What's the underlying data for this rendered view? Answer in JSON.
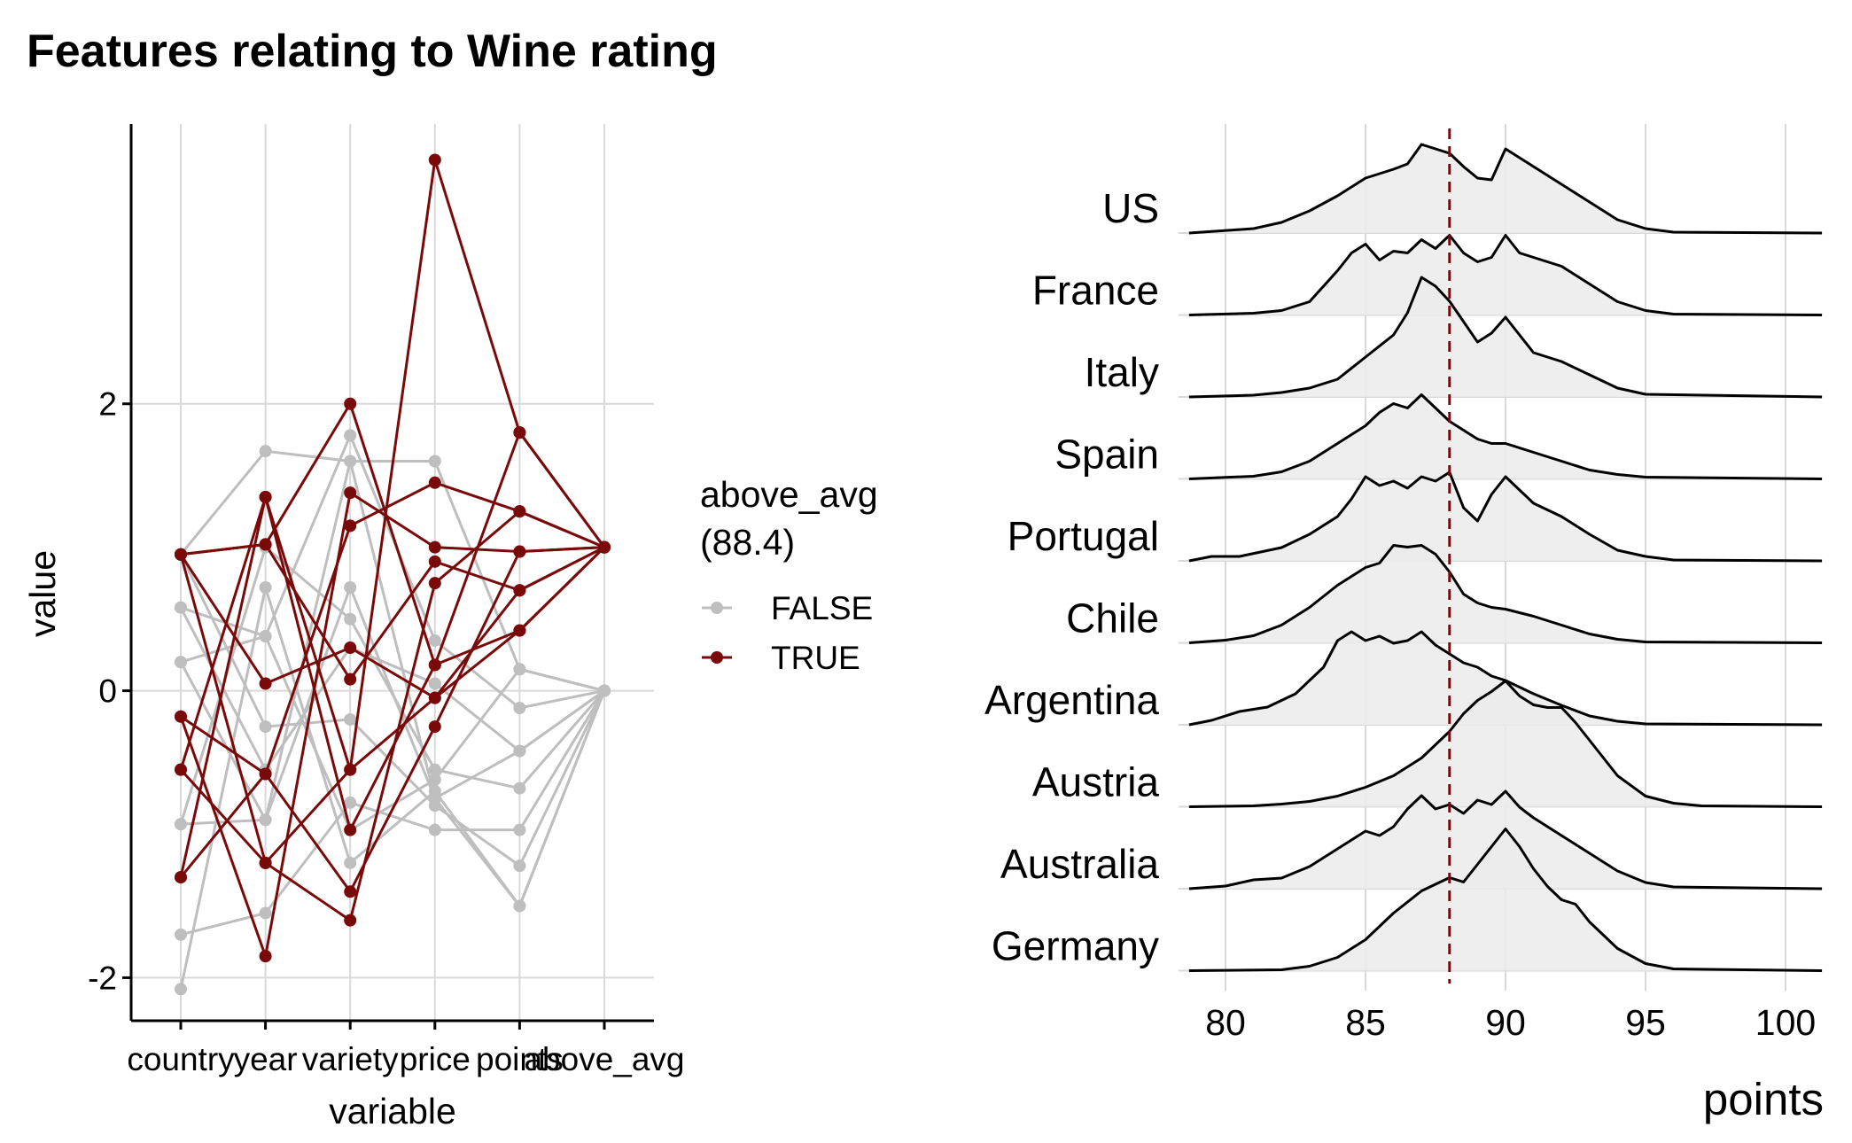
{
  "title": "Features relating to Wine rating",
  "colors": {
    "true": "#7a0a0a",
    "false": "#bebebe",
    "ridge_fill": "#ebebeb",
    "grid": "#d9d9d9",
    "vline": "#7a0a0a"
  },
  "chart_data": [
    {
      "type": "line",
      "subtype": "parallel-coordinates",
      "xlabel": "variable",
      "ylabel": "value",
      "categories": [
        "country",
        "year",
        "variety",
        "price",
        "points",
        "above_avg"
      ],
      "yticks": [
        -2,
        0,
        2
      ],
      "ylim": [
        -2.3,
        3.95
      ],
      "grid": true,
      "legend": {
        "title_line1": "above_avg",
        "title_line2": "(88.4)",
        "placement": "right",
        "entries": [
          "FALSE",
          "TRUE"
        ]
      },
      "series": [
        {
          "group": "TRUE",
          "values": [
            -0.55,
            1.35,
            -0.55,
            3.7,
            1.8,
            1.0
          ]
        },
        {
          "group": "TRUE",
          "values": [
            0.95,
            1.02,
            2.0,
            0.18,
            0.42,
            1.0
          ]
        },
        {
          "group": "TRUE",
          "values": [
            -1.3,
            -0.58,
            1.15,
            1.45,
            1.25,
            1.0
          ]
        },
        {
          "group": "TRUE",
          "values": [
            -0.18,
            -1.85,
            1.38,
            1.0,
            0.97,
            1.0
          ]
        },
        {
          "group": "TRUE",
          "values": [
            0.95,
            0.05,
            0.3,
            -0.05,
            0.42,
            1.0
          ]
        },
        {
          "group": "TRUE",
          "values": [
            -0.55,
            -1.2,
            -1.6,
            0.75,
            1.25,
            1.0
          ]
        },
        {
          "group": "TRUE",
          "values": [
            0.95,
            1.02,
            0.08,
            0.9,
            0.7,
            1.0
          ]
        },
        {
          "group": "TRUE",
          "values": [
            -0.18,
            -0.58,
            -1.4,
            -0.25,
            0.97,
            1.0
          ]
        },
        {
          "group": "TRUE",
          "values": [
            -1.3,
            1.35,
            -0.97,
            0.18,
            1.8,
            1.0
          ]
        },
        {
          "group": "TRUE",
          "values": [
            0.95,
            -1.2,
            -0.55,
            -0.05,
            0.7,
            1.0
          ]
        },
        {
          "group": "FALSE",
          "values": [
            0.95,
            1.67,
            1.6,
            1.6,
            0.15,
            0.0
          ]
        },
        {
          "group": "FALSE",
          "values": [
            0.58,
            0.38,
            1.78,
            0.35,
            -0.12,
            0.0
          ]
        },
        {
          "group": "FALSE",
          "values": [
            0.2,
            -0.9,
            0.72,
            -0.75,
            -0.42,
            0.0
          ]
        },
        {
          "group": "FALSE",
          "values": [
            -0.93,
            1.0,
            0.5,
            -0.55,
            -0.68,
            0.0
          ]
        },
        {
          "group": "FALSE",
          "values": [
            -1.7,
            -1.55,
            -0.78,
            -0.97,
            -0.97,
            0.0
          ]
        },
        {
          "group": "FALSE",
          "values": [
            -2.08,
            0.72,
            -1.2,
            -0.7,
            -1.5,
            0.0
          ]
        },
        {
          "group": "FALSE",
          "values": [
            0.95,
            -0.25,
            -0.2,
            -0.8,
            -1.22,
            0.0
          ]
        },
        {
          "group": "FALSE",
          "values": [
            0.58,
            -0.55,
            0.3,
            0.05,
            -0.42,
            0.0
          ]
        },
        {
          "group": "FALSE",
          "values": [
            0.2,
            0.38,
            -0.97,
            -0.62,
            0.15,
            0.0
          ]
        },
        {
          "group": "FALSE",
          "values": [
            -0.93,
            -0.9,
            1.6,
            -0.75,
            -1.5,
            0.0
          ]
        }
      ]
    },
    {
      "type": "ridgeline",
      "xlabel": "points",
      "xticks": [
        80,
        85,
        90,
        95,
        100
      ],
      "xlim": [
        78.5,
        101.3
      ],
      "reference_line": 88,
      "grid": true,
      "categories": [
        "US",
        "France",
        "Italy",
        "Spain",
        "Portugal",
        "Chile",
        "Argentina",
        "Austria",
        "Australia",
        "Germany"
      ],
      "densities": [
        [
          [
            78.7,
            0.0
          ],
          [
            81,
            0.05
          ],
          [
            82,
            0.12
          ],
          [
            83,
            0.25
          ],
          [
            84,
            0.42
          ],
          [
            85,
            0.62
          ],
          [
            86,
            0.72
          ],
          [
            86.5,
            0.78
          ],
          [
            87,
            1.0
          ],
          [
            87.5,
            0.95
          ],
          [
            88,
            0.9
          ],
          [
            88.5,
            0.75
          ],
          [
            89,
            0.62
          ],
          [
            89.5,
            0.6
          ],
          [
            90,
            0.95
          ],
          [
            90.5,
            0.85
          ],
          [
            91,
            0.75
          ],
          [
            92,
            0.55
          ],
          [
            93,
            0.35
          ],
          [
            94,
            0.15
          ],
          [
            95,
            0.05
          ],
          [
            96,
            0.01
          ],
          [
            101.3,
            0.0
          ]
        ],
        [
          [
            78.7,
            0.0
          ],
          [
            81,
            0.02
          ],
          [
            82,
            0.05
          ],
          [
            83,
            0.15
          ],
          [
            84,
            0.5
          ],
          [
            84.5,
            0.7
          ],
          [
            85,
            0.8
          ],
          [
            85.5,
            0.62
          ],
          [
            86,
            0.72
          ],
          [
            86.5,
            0.7
          ],
          [
            87,
            0.85
          ],
          [
            87.5,
            0.75
          ],
          [
            88,
            0.9
          ],
          [
            88.5,
            0.7
          ],
          [
            89,
            0.6
          ],
          [
            89.5,
            0.65
          ],
          [
            90,
            0.9
          ],
          [
            90.5,
            0.7
          ],
          [
            91,
            0.65
          ],
          [
            92,
            0.55
          ],
          [
            93,
            0.35
          ],
          [
            94,
            0.15
          ],
          [
            95,
            0.05
          ],
          [
            96,
            0.01
          ],
          [
            101.3,
            0.0
          ]
        ],
        [
          [
            78.7,
            0.0
          ],
          [
            81,
            0.02
          ],
          [
            82,
            0.05
          ],
          [
            83,
            0.1
          ],
          [
            84,
            0.2
          ],
          [
            85,
            0.45
          ],
          [
            86,
            0.7
          ],
          [
            86.5,
            0.95
          ],
          [
            87,
            1.35
          ],
          [
            87.5,
            1.25
          ],
          [
            88,
            1.08
          ],
          [
            88.5,
            0.85
          ],
          [
            89,
            0.62
          ],
          [
            89.5,
            0.72
          ],
          [
            90,
            0.9
          ],
          [
            90.5,
            0.7
          ],
          [
            91,
            0.5
          ],
          [
            92,
            0.4
          ],
          [
            93,
            0.25
          ],
          [
            94,
            0.1
          ],
          [
            95,
            0.03
          ],
          [
            101.3,
            0.0
          ]
        ],
        [
          [
            78.7,
            0.0
          ],
          [
            81,
            0.03
          ],
          [
            82,
            0.08
          ],
          [
            83,
            0.2
          ],
          [
            84,
            0.4
          ],
          [
            85,
            0.6
          ],
          [
            85.5,
            0.75
          ],
          [
            86,
            0.85
          ],
          [
            86.5,
            0.8
          ],
          [
            87,
            0.95
          ],
          [
            87.5,
            0.8
          ],
          [
            88,
            0.65
          ],
          [
            88.5,
            0.55
          ],
          [
            89,
            0.45
          ],
          [
            89.5,
            0.4
          ],
          [
            90,
            0.4
          ],
          [
            91,
            0.3
          ],
          [
            92,
            0.2
          ],
          [
            93,
            0.1
          ],
          [
            94,
            0.05
          ],
          [
            95,
            0.02
          ],
          [
            101.3,
            0.0
          ]
        ],
        [
          [
            78.7,
            0.0
          ],
          [
            79.5,
            0.05
          ],
          [
            80.5,
            0.05
          ],
          [
            82,
            0.15
          ],
          [
            83,
            0.3
          ],
          [
            84,
            0.5
          ],
          [
            84.5,
            0.7
          ],
          [
            85,
            0.95
          ],
          [
            85.5,
            0.85
          ],
          [
            86,
            0.9
          ],
          [
            86.5,
            0.82
          ],
          [
            87,
            0.95
          ],
          [
            87.5,
            0.9
          ],
          [
            88,
            1.0
          ],
          [
            88.5,
            0.6
          ],
          [
            89,
            0.45
          ],
          [
            89.5,
            0.75
          ],
          [
            90,
            0.95
          ],
          [
            90.5,
            0.8
          ],
          [
            91,
            0.65
          ],
          [
            92,
            0.5
          ],
          [
            93,
            0.3
          ],
          [
            94,
            0.12
          ],
          [
            95,
            0.05
          ],
          [
            96,
            0.01
          ],
          [
            101.3,
            0.0
          ]
        ],
        [
          [
            78.7,
            0.0
          ],
          [
            80,
            0.03
          ],
          [
            81,
            0.08
          ],
          [
            82,
            0.2
          ],
          [
            83,
            0.4
          ],
          [
            84,
            0.65
          ],
          [
            85,
            0.85
          ],
          [
            85.5,
            0.9
          ],
          [
            86,
            1.1
          ],
          [
            86.5,
            1.08
          ],
          [
            87,
            1.1
          ],
          [
            87.5,
            1.0
          ],
          [
            88,
            0.8
          ],
          [
            88.5,
            0.55
          ],
          [
            89,
            0.45
          ],
          [
            89.5,
            0.4
          ],
          [
            90,
            0.38
          ],
          [
            91,
            0.3
          ],
          [
            92,
            0.2
          ],
          [
            93,
            0.1
          ],
          [
            94,
            0.04
          ],
          [
            95,
            0.01
          ],
          [
            101.3,
            0.0
          ]
        ],
        [
          [
            78.7,
            0.0
          ],
          [
            79.5,
            0.05
          ],
          [
            80.5,
            0.15
          ],
          [
            81.5,
            0.2
          ],
          [
            82.5,
            0.35
          ],
          [
            83.5,
            0.65
          ],
          [
            84,
            0.95
          ],
          [
            84.5,
            1.05
          ],
          [
            85,
            0.95
          ],
          [
            85.5,
            1.0
          ],
          [
            86,
            0.92
          ],
          [
            86.5,
            0.95
          ],
          [
            87,
            1.05
          ],
          [
            87.5,
            0.9
          ],
          [
            88,
            0.8
          ],
          [
            88.5,
            0.7
          ],
          [
            89,
            0.65
          ],
          [
            89.5,
            0.55
          ],
          [
            90,
            0.5
          ],
          [
            91,
            0.35
          ],
          [
            92,
            0.22
          ],
          [
            93,
            0.1
          ],
          [
            94,
            0.04
          ],
          [
            95,
            0.01
          ],
          [
            101.3,
            0.0
          ]
        ],
        [
          [
            78.7,
            0.0
          ],
          [
            81,
            0.01
          ],
          [
            82,
            0.03
          ],
          [
            83,
            0.06
          ],
          [
            84,
            0.12
          ],
          [
            85,
            0.22
          ],
          [
            86,
            0.35
          ],
          [
            87,
            0.55
          ],
          [
            88,
            0.85
          ],
          [
            88.5,
            1.05
          ],
          [
            89,
            1.2
          ],
          [
            89.5,
            1.3
          ],
          [
            90,
            1.42
          ],
          [
            90.5,
            1.25
          ],
          [
            91,
            1.15
          ],
          [
            91.5,
            1.12
          ],
          [
            92,
            1.12
          ],
          [
            92.5,
            0.95
          ],
          [
            93,
            0.75
          ],
          [
            94,
            0.35
          ],
          [
            95,
            0.12
          ],
          [
            96,
            0.04
          ],
          [
            97,
            0.01
          ],
          [
            101.3,
            0.0
          ]
        ],
        [
          [
            78.7,
            0.0
          ],
          [
            80,
            0.03
          ],
          [
            81,
            0.1
          ],
          [
            82,
            0.12
          ],
          [
            83,
            0.25
          ],
          [
            84,
            0.45
          ],
          [
            85,
            0.65
          ],
          [
            85.5,
            0.6
          ],
          [
            86,
            0.7
          ],
          [
            86.5,
            0.9
          ],
          [
            87,
            1.05
          ],
          [
            87.5,
            0.9
          ],
          [
            88,
            0.95
          ],
          [
            88.5,
            0.85
          ],
          [
            89,
            1.0
          ],
          [
            89.5,
            0.95
          ],
          [
            90,
            1.1
          ],
          [
            90.5,
            0.92
          ],
          [
            91,
            0.8
          ],
          [
            92,
            0.6
          ],
          [
            93,
            0.4
          ],
          [
            94,
            0.2
          ],
          [
            95,
            0.07
          ],
          [
            96,
            0.02
          ],
          [
            101.3,
            0.0
          ]
        ],
        [
          [
            78.7,
            0.0
          ],
          [
            82,
            0.01
          ],
          [
            83,
            0.05
          ],
          [
            84,
            0.15
          ],
          [
            85,
            0.35
          ],
          [
            86,
            0.65
          ],
          [
            87,
            0.9
          ],
          [
            88,
            1.05
          ],
          [
            88.5,
            1.0
          ],
          [
            89,
            1.2
          ],
          [
            89.5,
            1.4
          ],
          [
            90,
            1.6
          ],
          [
            90.5,
            1.4
          ],
          [
            91,
            1.15
          ],
          [
            91.5,
            0.95
          ],
          [
            92,
            0.8
          ],
          [
            92.5,
            0.75
          ],
          [
            93,
            0.55
          ],
          [
            94,
            0.25
          ],
          [
            95,
            0.08
          ],
          [
            96,
            0.02
          ],
          [
            101.3,
            0.0
          ]
        ]
      ]
    }
  ]
}
